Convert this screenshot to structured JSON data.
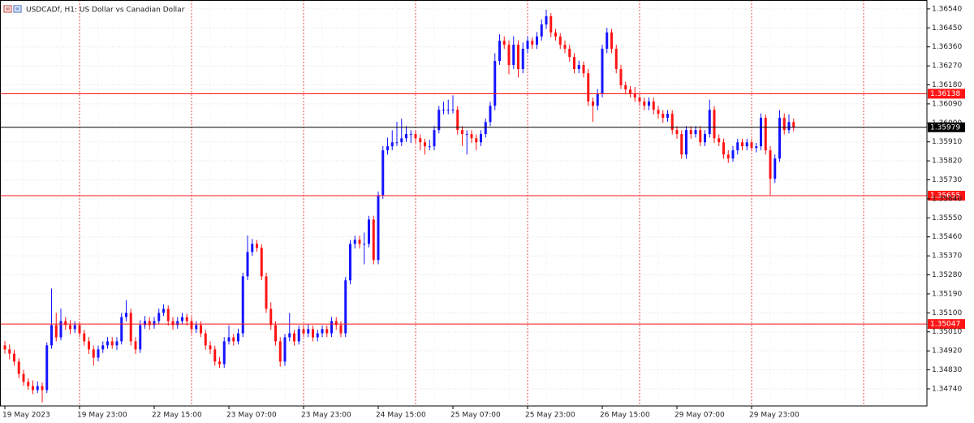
{
  "chart_data": {
    "type": "candlestick",
    "title": "USDCADf, H1:  US Dollar vs Canadian Dollar",
    "up_color": "#1414ff",
    "down_color": "#ff1414",
    "ylim": [
      1.34659,
      1.36582
    ],
    "yticks": [
      {
        "value": 1.3654,
        "label": "1.36540"
      },
      {
        "value": 1.3645,
        "label": "1.36450"
      },
      {
        "value": 1.3636,
        "label": "1.36360"
      },
      {
        "value": 1.3627,
        "label": "1.36270"
      },
      {
        "value": 1.3618,
        "label": "1.36180"
      },
      {
        "value": 1.3609,
        "label": "1.36090"
      },
      {
        "value": 1.36,
        "label": "1.36000"
      },
      {
        "value": 1.3591,
        "label": "1.35910"
      },
      {
        "value": 1.3582,
        "label": "1.35820"
      },
      {
        "value": 1.3573,
        "label": "1.35730"
      },
      {
        "value": 1.3564,
        "label": "1.35640"
      },
      {
        "value": 1.3555,
        "label": "1.35550"
      },
      {
        "value": 1.3546,
        "label": "1.35460"
      },
      {
        "value": 1.3537,
        "label": "1.35370"
      },
      {
        "value": 1.3528,
        "label": "1.35280"
      },
      {
        "value": 1.3519,
        "label": "1.35190"
      },
      {
        "value": 1.351,
        "label": "1.35100"
      },
      {
        "value": 1.3501,
        "label": "1.35010"
      },
      {
        "value": 1.3492,
        "label": "1.34920"
      },
      {
        "value": 1.3483,
        "label": "1.34830"
      },
      {
        "value": 1.3474,
        "label": "1.34740"
      }
    ],
    "grid": true,
    "levels": [
      {
        "value": 1.36138,
        "color": "#ff1414"
      },
      {
        "value": 1.35979,
        "color": "#000000"
      },
      {
        "value": 1.35655,
        "color": "#ff1414"
      },
      {
        "value": 1.35047,
        "color": "#ff1414"
      }
    ],
    "categories": [
      "19 May 2023",
      null,
      null,
      null,
      null,
      null,
      null,
      null,
      null,
      null,
      null,
      null,
      null,
      null,
      null,
      null,
      "19 May 23:00",
      null,
      null,
      null,
      null,
      null,
      null,
      null,
      null,
      null,
      null,
      null,
      null,
      null,
      null,
      null,
      "22 May 15:00",
      null,
      null,
      null,
      null,
      null,
      null,
      null,
      null,
      null,
      null,
      null,
      null,
      null,
      null,
      null,
      "23 May 07:00",
      null,
      null,
      null,
      null,
      null,
      null,
      null,
      null,
      null,
      null,
      null,
      null,
      null,
      null,
      null,
      "23 May 23:00",
      null,
      null,
      null,
      null,
      null,
      null,
      null,
      null,
      null,
      null,
      null,
      null,
      null,
      null,
      null,
      "24 May 15:00",
      null,
      null,
      null,
      null,
      null,
      null,
      null,
      null,
      null,
      null,
      null,
      null,
      null,
      null,
      null,
      "25 May 07:00",
      null,
      null,
      null,
      null,
      null,
      null,
      null,
      null,
      null,
      null,
      null,
      null,
      null,
      null,
      null,
      "25 May 23:00",
      null,
      null,
      null,
      null,
      null,
      null,
      null,
      null,
      null,
      null,
      null,
      null,
      null,
      null,
      null,
      "26 May 15:00",
      null,
      null,
      null,
      null,
      null,
      null,
      null,
      null,
      null,
      null,
      null,
      null,
      null,
      null,
      null,
      "29 May 07:00",
      null,
      null,
      null,
      null,
      null,
      null,
      null,
      null,
      null,
      null,
      null,
      null,
      null,
      null,
      null,
      "29 May 23:00",
      null,
      null,
      null,
      null,
      null,
      null,
      null,
      null,
      null
    ],
    "candles": [
      [
        1.34946,
        1.34966,
        1.34907,
        1.34927
      ],
      [
        1.34927,
        1.3495,
        1.3488,
        1.34907
      ],
      [
        1.34907,
        1.34925,
        1.3485,
        1.34869
      ],
      [
        1.34869,
        1.34885,
        1.3479,
        1.34811
      ],
      [
        1.34811,
        1.3483,
        1.34755,
        1.34773
      ],
      [
        1.34773,
        1.3479,
        1.34735,
        1.34753
      ],
      [
        1.34753,
        1.3478,
        1.34715,
        1.34734
      ],
      [
        1.34734,
        1.34775,
        1.3472,
        1.34753
      ],
      [
        1.34753,
        1.3477,
        1.34676,
        1.34734
      ],
      [
        1.34734,
        1.3496,
        1.3472,
        1.34946
      ],
      [
        1.34946,
        1.35215,
        1.3493,
        1.35042
      ],
      [
        1.35042,
        1.351,
        1.34965,
        1.34984
      ],
      [
        1.34984,
        1.3512,
        1.3497,
        1.35061
      ],
      [
        1.35061,
        1.3508,
        1.3502,
        1.35042
      ],
      [
        1.35042,
        1.35065,
        1.35,
        1.35023
      ],
      [
        1.35023,
        1.3506,
        1.35005,
        1.35042
      ],
      [
        1.35042,
        1.3506,
        1.34985,
        1.35003
      ],
      [
        1.35003,
        1.3502,
        1.34945,
        1.34965
      ],
      [
        1.34965,
        1.34985,
        1.34905,
        1.34927
      ],
      [
        1.34927,
        1.34945,
        1.3485,
        1.34888
      ],
      [
        1.34888,
        1.34945,
        1.3487,
        1.34927
      ],
      [
        1.34927,
        1.34965,
        1.3491,
        1.34946
      ],
      [
        1.34946,
        1.34985,
        1.3493,
        1.34965
      ],
      [
        1.34965,
        1.34985,
        1.3493,
        1.34946
      ],
      [
        1.34946,
        1.34985,
        1.34925,
        1.34965
      ],
      [
        1.34965,
        1.351,
        1.3495,
        1.3508
      ],
      [
        1.3508,
        1.3516,
        1.3506,
        1.351
      ],
      [
        1.351,
        1.3512,
        1.34945,
        1.34965
      ],
      [
        1.34965,
        1.34985,
        1.34905,
        1.34927
      ],
      [
        1.34927,
        1.35065,
        1.3491,
        1.35042
      ],
      [
        1.35042,
        1.35085,
        1.35025,
        1.35061
      ],
      [
        1.35061,
        1.3508,
        1.3502,
        1.35042
      ],
      [
        1.35042,
        1.3508,
        1.35025,
        1.35061
      ],
      [
        1.35061,
        1.3512,
        1.35045,
        1.351
      ],
      [
        1.351,
        1.3514,
        1.35085,
        1.35119
      ],
      [
        1.35119,
        1.35135,
        1.3504,
        1.35061
      ],
      [
        1.35061,
        1.3508,
        1.3502,
        1.35042
      ],
      [
        1.35042,
        1.3508,
        1.35025,
        1.35061
      ],
      [
        1.35061,
        1.351,
        1.35045,
        1.3508
      ],
      [
        1.3508,
        1.35095,
        1.3504,
        1.35061
      ],
      [
        1.35061,
        1.3508,
        1.35,
        1.35023
      ],
      [
        1.35023,
        1.3506,
        1.35005,
        1.35042
      ],
      [
        1.35042,
        1.3506,
        1.34985,
        1.35003
      ],
      [
        1.35003,
        1.3502,
        1.34925,
        1.34946
      ],
      [
        1.34946,
        1.34965,
        1.34905,
        1.34927
      ],
      [
        1.34927,
        1.34945,
        1.3485,
        1.34869
      ],
      [
        1.34869,
        1.3489,
        1.3484,
        1.34857
      ],
      [
        1.34857,
        1.34985,
        1.3484,
        1.34965
      ],
      [
        1.34965,
        1.3504,
        1.3495,
        1.34984
      ],
      [
        1.34984,
        1.35,
        1.34945,
        1.34965
      ],
      [
        1.34965,
        1.35025,
        1.3495,
        1.35003
      ],
      [
        1.35003,
        1.3529,
        1.34985,
        1.35273
      ],
      [
        1.35273,
        1.35466,
        1.35255,
        1.35388
      ],
      [
        1.35388,
        1.3545,
        1.3537,
        1.35427
      ],
      [
        1.35427,
        1.35445,
        1.3539,
        1.35408
      ],
      [
        1.35408,
        1.35425,
        1.35255,
        1.35273
      ],
      [
        1.35273,
        1.3529,
        1.351,
        1.35119
      ],
      [
        1.35119,
        1.3515,
        1.3502,
        1.35042
      ],
      [
        1.35042,
        1.3506,
        1.34945,
        1.34965
      ],
      [
        1.34965,
        1.34985,
        1.34845,
        1.34869
      ],
      [
        1.34869,
        1.35,
        1.3485,
        1.34984
      ],
      [
        1.34984,
        1.351,
        1.34965,
        1.35003
      ],
      [
        1.35003,
        1.3502,
        1.34945,
        1.34965
      ],
      [
        1.34965,
        1.3504,
        1.3495,
        1.35023
      ],
      [
        1.35023,
        1.3504,
        1.34985,
        1.35003
      ],
      [
        1.35003,
        1.35045,
        1.34985,
        1.35023
      ],
      [
        1.35023,
        1.3504,
        1.34965,
        1.34984
      ],
      [
        1.34984,
        1.3502,
        1.34965,
        1.35003
      ],
      [
        1.35003,
        1.3504,
        1.34985,
        1.35023
      ],
      [
        1.35023,
        1.3504,
        1.34985,
        1.35003
      ],
      [
        1.35003,
        1.3508,
        1.34985,
        1.35061
      ],
      [
        1.35061,
        1.3508,
        1.3502,
        1.35042
      ],
      [
        1.35042,
        1.3506,
        1.34985,
        1.35003
      ],
      [
        1.35003,
        1.3527,
        1.34985,
        1.35254
      ],
      [
        1.35254,
        1.35445,
        1.35235,
        1.35427
      ],
      [
        1.35427,
        1.35465,
        1.35405,
        1.35446
      ],
      [
        1.35446,
        1.35465,
        1.35405,
        1.35427
      ],
      [
        1.35427,
        1.3548,
        1.3533,
        1.35427
      ],
      [
        1.35427,
        1.3556,
        1.3541,
        1.35542
      ],
      [
        1.35542,
        1.3556,
        1.3533,
        1.3535
      ],
      [
        1.3535,
        1.35675,
        1.3533,
        1.35658
      ],
      [
        1.35658,
        1.3589,
        1.3564,
        1.3587
      ],
      [
        1.3587,
        1.3593,
        1.3585,
        1.35889
      ],
      [
        1.35889,
        1.35965,
        1.3587,
        1.35908
      ],
      [
        1.35908,
        1.36005,
        1.3589,
        1.35908
      ],
      [
        1.35908,
        1.3602,
        1.3589,
        1.35927
      ],
      [
        1.35927,
        1.35985,
        1.3591,
        1.35947
      ],
      [
        1.35947,
        1.35965,
        1.35905,
        1.35947
      ],
      [
        1.35947,
        1.35965,
        1.35905,
        1.35927
      ],
      [
        1.35927,
        1.35945,
        1.3587,
        1.35908
      ],
      [
        1.35908,
        1.35925,
        1.3585,
        1.35889
      ],
      [
        1.35889,
        1.3592,
        1.3587,
        1.35889
      ],
      [
        1.35889,
        1.35985,
        1.3587,
        1.35966
      ],
      [
        1.35966,
        1.3608,
        1.3595,
        1.36062
      ],
      [
        1.36062,
        1.361,
        1.3604,
        1.36062
      ],
      [
        1.36062,
        1.3611,
        1.3604,
        1.36062
      ],
      [
        1.36062,
        1.3613,
        1.36045,
        1.36062
      ],
      [
        1.36062,
        1.3608,
        1.35945,
        1.35966
      ],
      [
        1.35966,
        1.35985,
        1.3589,
        1.35947
      ],
      [
        1.35947,
        1.35965,
        1.3585,
        1.35947
      ],
      [
        1.35947,
        1.35965,
        1.35905,
        1.35927
      ],
      [
        1.35927,
        1.35945,
        1.3587,
        1.35908
      ],
      [
        1.35908,
        1.35965,
        1.3589,
        1.35947
      ],
      [
        1.35947,
        1.3602,
        1.3593,
        1.36004
      ],
      [
        1.36004,
        1.361,
        1.35985,
        1.36081
      ],
      [
        1.36081,
        1.3633,
        1.3606,
        1.36293
      ],
      [
        1.36293,
        1.3642,
        1.36275,
        1.36389
      ],
      [
        1.36389,
        1.3641,
        1.3635,
        1.3637
      ],
      [
        1.3637,
        1.3639,
        1.3623,
        1.36274
      ],
      [
        1.36274,
        1.3641,
        1.36255,
        1.3637
      ],
      [
        1.3637,
        1.3639,
        1.36215,
        1.36255
      ],
      [
        1.36255,
        1.3638,
        1.36235,
        1.36351
      ],
      [
        1.36351,
        1.3641,
        1.3633,
        1.36389
      ],
      [
        1.36389,
        1.36405,
        1.3635,
        1.3637
      ],
      [
        1.3637,
        1.3643,
        1.3635,
        1.36409
      ],
      [
        1.36409,
        1.3649,
        1.3639,
        1.36466
      ],
      [
        1.36466,
        1.36536,
        1.36445,
        1.36505
      ],
      [
        1.36505,
        1.3652,
        1.36405,
        1.36428
      ],
      [
        1.36428,
        1.36445,
        1.3639,
        1.36409
      ],
      [
        1.36409,
        1.36425,
        1.3635,
        1.3637
      ],
      [
        1.3637,
        1.3639,
        1.3633,
        1.36351
      ],
      [
        1.36351,
        1.3637,
        1.3629,
        1.36312
      ],
      [
        1.36312,
        1.3633,
        1.36235,
        1.36255
      ],
      [
        1.36255,
        1.36295,
        1.36235,
        1.36274
      ],
      [
        1.36274,
        1.3629,
        1.36215,
        1.36235
      ],
      [
        1.36235,
        1.36255,
        1.3608,
        1.36101
      ],
      [
        1.36101,
        1.3612,
        1.36005,
        1.36081
      ],
      [
        1.36081,
        1.3616,
        1.3606,
        1.36139
      ],
      [
        1.36139,
        1.3637,
        1.3612,
        1.36351
      ],
      [
        1.36351,
        1.3645,
        1.3633,
        1.36428
      ],
      [
        1.36428,
        1.36445,
        1.3633,
        1.36351
      ],
      [
        1.36351,
        1.3637,
        1.36235,
        1.36255
      ],
      [
        1.36255,
        1.36275,
        1.3616,
        1.36178
      ],
      [
        1.36178,
        1.36195,
        1.3614,
        1.36158
      ],
      [
        1.36158,
        1.36175,
        1.3612,
        1.36139
      ],
      [
        1.36139,
        1.3617,
        1.361,
        1.3612
      ],
      [
        1.3612,
        1.3614,
        1.3608,
        1.36101
      ],
      [
        1.36101,
        1.3612,
        1.3606,
        1.36081
      ],
      [
        1.36081,
        1.3612,
        1.3606,
        1.36101
      ],
      [
        1.36101,
        1.3612,
        1.3604,
        1.36062
      ],
      [
        1.36062,
        1.3608,
        1.3602,
        1.36043
      ],
      [
        1.36043,
        1.3606,
        1.36,
        1.36024
      ],
      [
        1.36024,
        1.3606,
        1.36005,
        1.36043
      ],
      [
        1.36043,
        1.3606,
        1.35945,
        1.35966
      ],
      [
        1.35966,
        1.35985,
        1.35925,
        1.35947
      ],
      [
        1.35947,
        1.35965,
        1.3583,
        1.3585
      ],
      [
        1.3585,
        1.35985,
        1.3583,
        1.35966
      ],
      [
        1.35966,
        1.35985,
        1.35925,
        1.35947
      ],
      [
        1.35947,
        1.35985,
        1.3593,
        1.35966
      ],
      [
        1.35966,
        1.35985,
        1.3589,
        1.35908
      ],
      [
        1.35908,
        1.35965,
        1.3589,
        1.35947
      ],
      [
        1.35947,
        1.3611,
        1.3593,
        1.36062
      ],
      [
        1.36062,
        1.3608,
        1.35905,
        1.35927
      ],
      [
        1.35927,
        1.35945,
        1.3589,
        1.35908
      ],
      [
        1.35908,
        1.35925,
        1.3583,
        1.3585
      ],
      [
        1.3585,
        1.3587,
        1.3581,
        1.35831
      ],
      [
        1.35831,
        1.3589,
        1.35815,
        1.3587
      ],
      [
        1.3587,
        1.35925,
        1.3585,
        1.35908
      ],
      [
        1.35908,
        1.35925,
        1.3587,
        1.35889
      ],
      [
        1.35889,
        1.35925,
        1.3587,
        1.35908
      ],
      [
        1.35908,
        1.35925,
        1.35865,
        1.35881
      ],
      [
        1.35881,
        1.35905,
        1.3586,
        1.35889
      ],
      [
        1.35889,
        1.36045,
        1.3587,
        1.36024
      ],
      [
        1.36024,
        1.3604,
        1.3585,
        1.3587
      ],
      [
        1.3587,
        1.3589,
        1.35658,
        1.35735
      ],
      [
        1.35735,
        1.3585,
        1.35715,
        1.35831
      ],
      [
        1.35831,
        1.3606,
        1.35815,
        1.36024
      ],
      [
        1.36024,
        1.36045,
        1.35945,
        1.35966
      ],
      [
        1.35966,
        1.3604,
        1.3595,
        1.36004
      ],
      [
        1.36004,
        1.3602,
        1.3596,
        1.35979
      ]
    ]
  }
}
